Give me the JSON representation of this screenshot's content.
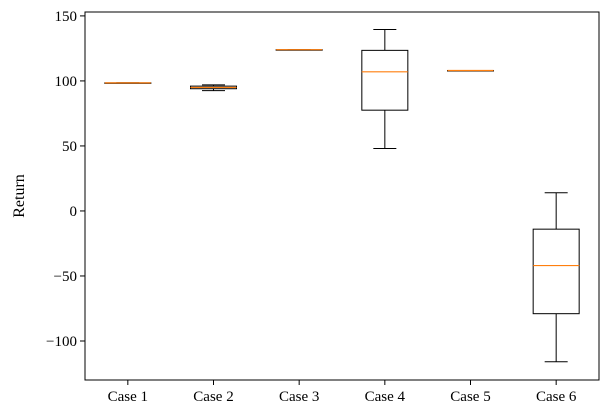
{
  "chart_data": {
    "type": "box",
    "title": "",
    "xlabel": "",
    "ylabel": "Return",
    "ylim": [
      -130,
      153
    ],
    "yticks": [
      150,
      100,
      50,
      0,
      -50,
      -100
    ],
    "ytick_labels": [
      "150",
      "100",
      "50",
      "0",
      "−50",
      "−100"
    ],
    "grid": false,
    "categories": [
      "Case 1",
      "Case 2",
      "Case 3",
      "Case 4",
      "Case 5",
      "Case 6"
    ],
    "boxes": [
      {
        "whislo": 98.5,
        "q1": 98.5,
        "med": 98.5,
        "q3": 98.5,
        "whishi": 98.5
      },
      {
        "whislo": 92.5,
        "q1": 94,
        "med": 95,
        "q3": 96,
        "whishi": 97
      },
      {
        "whislo": 124,
        "q1": 124,
        "med": 124,
        "q3": 124,
        "whishi": 124
      },
      {
        "whislo": 48,
        "q1": 77.5,
        "med": 107,
        "q3": 123.5,
        "whishi": 139.5
      },
      {
        "whislo": 108,
        "q1": 108,
        "med": 108,
        "q3": 108,
        "whishi": 108
      },
      {
        "whislo": -116,
        "q1": -79,
        "med": -42,
        "q3": -14,
        "whishi": 14
      }
    ],
    "colors": {
      "box": "#000000",
      "median": "#ff7f0e"
    }
  }
}
